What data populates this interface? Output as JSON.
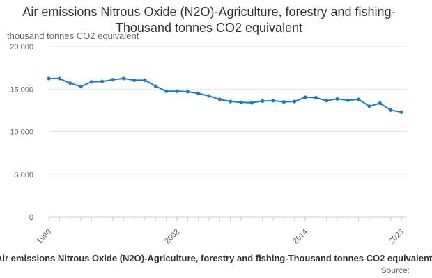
{
  "chart_data": {
    "type": "line",
    "title": "Air emissions Nitrous Oxide (N2O)-Agriculture, forestry and fishing-Thousand tonnes CO2 equivalent",
    "ylabel": "thousand tonnes CO2 equivalent",
    "xlabel": "Air emissions Nitrous Oxide (N2O)-Agriculture, forestry and fishing-Thousand tonnes CO2 equivalent",
    "source": "Source:",
    "ylim": [
      0,
      20000
    ],
    "yticks": [
      {
        "value": 0,
        "label": "0"
      },
      {
        "value": 5000,
        "label": "5 000"
      },
      {
        "value": 10000,
        "label": "10 000"
      },
      {
        "value": 15000,
        "label": "15 000"
      },
      {
        "value": 20000,
        "label": "20 000"
      }
    ],
    "xlim": [
      1990,
      2023
    ],
    "xtick_labels": [
      "1990",
      "2002",
      "2014",
      "2023"
    ],
    "grid": "horizontal",
    "line_color": "#1f7bbf",
    "series": [
      {
        "x": [
          1990,
          1991,
          1992,
          1993,
          1994,
          1995,
          1996,
          1997,
          1998,
          1999,
          2000,
          2001,
          2002,
          2003,
          2004,
          2005,
          2006,
          2007,
          2008,
          2009,
          2010,
          2011,
          2012,
          2013,
          2014,
          2015,
          2016,
          2017,
          2018,
          2019,
          2020,
          2021,
          2022,
          2023
        ],
        "values": [
          16250,
          16250,
          15700,
          15300,
          15850,
          15900,
          16100,
          16250,
          16050,
          16050,
          15350,
          14750,
          14750,
          14700,
          14500,
          14200,
          13800,
          13550,
          13450,
          13400,
          13600,
          13650,
          13500,
          13550,
          14050,
          14000,
          13650,
          13850,
          13700,
          13800,
          13000,
          13350,
          12550,
          12300
        ]
      }
    ]
  }
}
